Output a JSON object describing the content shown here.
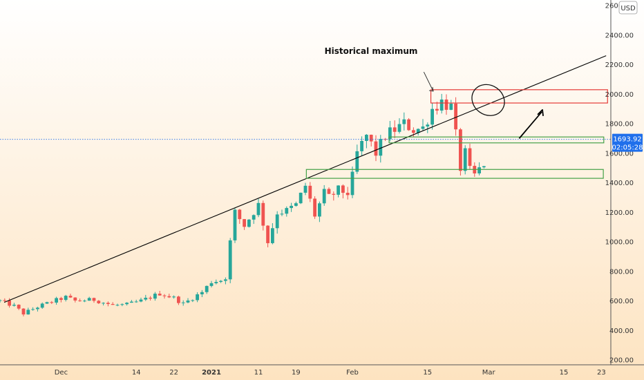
{
  "chart_data": {
    "type": "candlestick",
    "currency_label": "USD",
    "ylim": [
      180,
      2620
    ],
    "y_ticks": [
      200,
      400,
      600,
      800,
      1000,
      1200,
      1400,
      1600,
      1800,
      2000,
      2200,
      2400,
      2600
    ],
    "y_tick_labels": [
      "200.00",
      "400.00",
      "600.00",
      "800.00",
      "1000.00",
      "1200.00",
      "1400.00",
      "1600.00",
      "1800.00",
      "2000.00",
      "2200.00",
      "2400.00",
      "2600.00"
    ],
    "x_ticks": [
      {
        "label": "Dec",
        "bold": false
      },
      {
        "label": "14",
        "bold": false
      },
      {
        "label": "22",
        "bold": false
      },
      {
        "label": "2021",
        "bold": true
      },
      {
        "label": "11",
        "bold": false
      },
      {
        "label": "19",
        "bold": false
      },
      {
        "label": "Feb",
        "bold": false
      },
      {
        "label": "15",
        "bold": false
      },
      {
        "label": "Mar",
        "bold": false
      },
      {
        "label": "15",
        "bold": false
      },
      {
        "label": "23",
        "bold": false
      }
    ],
    "x_tick_index": [
      13,
      29,
      37,
      45,
      55,
      63,
      75,
      91,
      104,
      120,
      128
    ],
    "num_days": 132,
    "candle_count": 104,
    "close_keyframes": [
      [
        0,
        600
      ],
      [
        3,
        565
      ],
      [
        5,
        515
      ],
      [
        8,
        560
      ],
      [
        12,
        605
      ],
      [
        14,
        625
      ],
      [
        16,
        600
      ],
      [
        18,
        605
      ],
      [
        20,
        608
      ],
      [
        24,
        570
      ],
      [
        27,
        575
      ],
      [
        30,
        600
      ],
      [
        34,
        650
      ],
      [
        37,
        620
      ],
      [
        39,
        580
      ],
      [
        43,
        660
      ],
      [
        45,
        730
      ],
      [
        47,
        740
      ],
      [
        48,
        760
      ],
      [
        49,
        1000
      ],
      [
        50,
        1200
      ],
      [
        52,
        1110
      ],
      [
        55,
        1250
      ],
      [
        57,
        1000
      ],
      [
        59,
        1200
      ],
      [
        61,
        1210
      ],
      [
        63,
        1250
      ],
      [
        65,
        1380
      ],
      [
        67,
        1180
      ],
      [
        69,
        1330
      ],
      [
        70,
        1300
      ],
      [
        72,
        1350
      ],
      [
        74,
        1330
      ],
      [
        75,
        1440
      ],
      [
        76,
        1600
      ],
      [
        78,
        1720
      ],
      [
        80,
        1600
      ],
      [
        82,
        1720
      ],
      [
        84,
        1760
      ],
      [
        86,
        1800
      ],
      [
        88,
        1760
      ],
      [
        90,
        1770
      ],
      [
        92,
        1900
      ],
      [
        94,
        1950
      ],
      [
        96,
        1910
      ],
      [
        97,
        1720
      ],
      [
        98,
        1500
      ],
      [
        99,
        1600
      ],
      [
        100,
        1480
      ],
      [
        101,
        1450
      ],
      [
        103,
        1530
      ]
    ],
    "last_price": "1693.92",
    "countdown": "02:05:28",
    "annotation": "Historical maximum",
    "trendline": {
      "x1": 0.9,
      "y1": 590,
      "x2": 129,
      "y2": 2260
    },
    "zones": [
      {
        "type": "resistance",
        "x1": 91.7,
        "x2": 129.3,
        "y_low": 1940,
        "y_high": 2030,
        "color": "#e53935"
      },
      {
        "type": "support",
        "x1": 82.8,
        "x2": 128.5,
        "y_low": 1670,
        "y_high": 1710,
        "color": "#43a047"
      },
      {
        "type": "support",
        "x1": 65.2,
        "x2": 128.4,
        "y_low": 1430,
        "y_high": 1490,
        "color": "#43a047"
      }
    ],
    "ellipse": {
      "cx": 103.9,
      "cy": 1960,
      "rx": 3.6,
      "ry": 100
    },
    "arrow_annotation": {
      "x1": 90.2,
      "y1": 2150,
      "x2": 92.2,
      "y2": 2020
    },
    "arrow_projection": {
      "x1": 110.5,
      "y1": 1700,
      "x2": 115.3,
      "y2": 1880,
      "tip_x": 115.4,
      "tip_y": 1895
    },
    "colors": {
      "up": "#26a69a",
      "down": "#ef5350",
      "bg_top": "#ffffff",
      "bg_bottom": "#fde3c0",
      "badge": "#1f6feb"
    }
  }
}
